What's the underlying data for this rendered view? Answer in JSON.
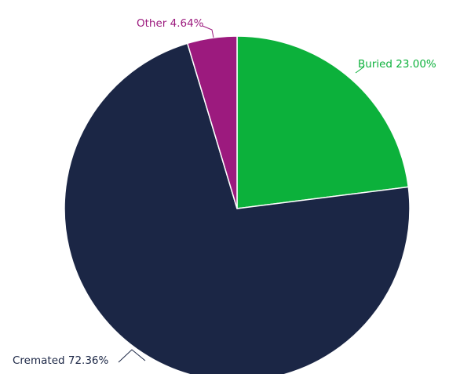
{
  "chart_data": {
    "type": "pie",
    "start_angle_deg": 0,
    "direction": "clockwise",
    "slices": [
      {
        "name": "Buried",
        "value": 23.0,
        "display": "Buried 23.00%",
        "color": "#0cb13b"
      },
      {
        "name": "Cremated",
        "value": 72.36,
        "display": "Cremated 72.36%",
        "color": "#1b2645"
      },
      {
        "name": "Other",
        "value": 4.64,
        "display": "Other 4.64%",
        "color": "#9c1a7e"
      }
    ],
    "legend": "none"
  }
}
